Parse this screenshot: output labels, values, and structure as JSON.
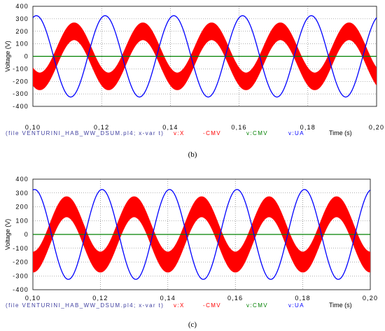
{
  "chart_data": [
    {
      "type": "line",
      "caption": "(b)",
      "ylabel": "Voltage (V)",
      "xlabel": "Time (s)",
      "xlim": [
        0.1,
        0.2
      ],
      "ylim": [
        -400,
        400
      ],
      "x_ticks": [
        "0,10",
        "0,12",
        "0,14",
        "0,16",
        "0,18",
        "0,20"
      ],
      "y_ticks": [
        "400",
        "300",
        "200",
        "100",
        "0",
        "-100",
        "-200",
        "-300",
        "-400"
      ],
      "grid": true,
      "footer": "(file VENTURINI_HAB_WW_DSUM.pl4; x-var t)",
      "series": [
        {
          "name": "v:X -CMV",
          "color": "#ff0000",
          "shape": "pwm-band",
          "center_amplitude": 200,
          "center_period": 0.02,
          "center_phase": 0.007,
          "band_halfwidth": 70
        },
        {
          "name": "v:CMV",
          "color": "#008000",
          "shape": "constant",
          "value": 0
        },
        {
          "name": "v:UA",
          "color": "#0000ff",
          "shape": "sine",
          "amplitude": 325,
          "period": 0.02,
          "peak_time": 0.101
        }
      ]
    },
    {
      "type": "line",
      "caption": "(c)",
      "ylabel": "Voltage (V)",
      "xlabel": "Time (s)",
      "xlim": [
        0.1,
        0.2
      ],
      "ylim": [
        -400,
        400
      ],
      "x_ticks": [
        "0,10",
        "0,12",
        "0,14",
        "0,16",
        "0,18",
        "0,20"
      ],
      "y_ticks": [
        "400",
        "300",
        "200",
        "100",
        "0",
        "-100",
        "-200",
        "-300",
        "-400"
      ],
      "grid": true,
      "footer": "(file VENTURINI_HAB_WW_DSUM.pl4; x-var t)",
      "series": [
        {
          "name": "v:X -CMV",
          "color": "#ff0000",
          "shape": "pwm-band",
          "center_amplitude": 200,
          "center_period": 0.02,
          "center_phase": 0.005,
          "band_halfwidth": 75
        },
        {
          "name": "v:CMV",
          "color": "#008000",
          "shape": "constant",
          "value": 0
        },
        {
          "name": "v:UA",
          "color": "#0000ff",
          "shape": "sine",
          "amplitude": 325,
          "period": 0.02,
          "peak_time": 0.1005
        }
      ]
    }
  ],
  "legend_labels": {
    "x": "v:X",
    "cmv_neg": "-CMV",
    "cmv": "v:CMV",
    "ua": "v:UA"
  }
}
